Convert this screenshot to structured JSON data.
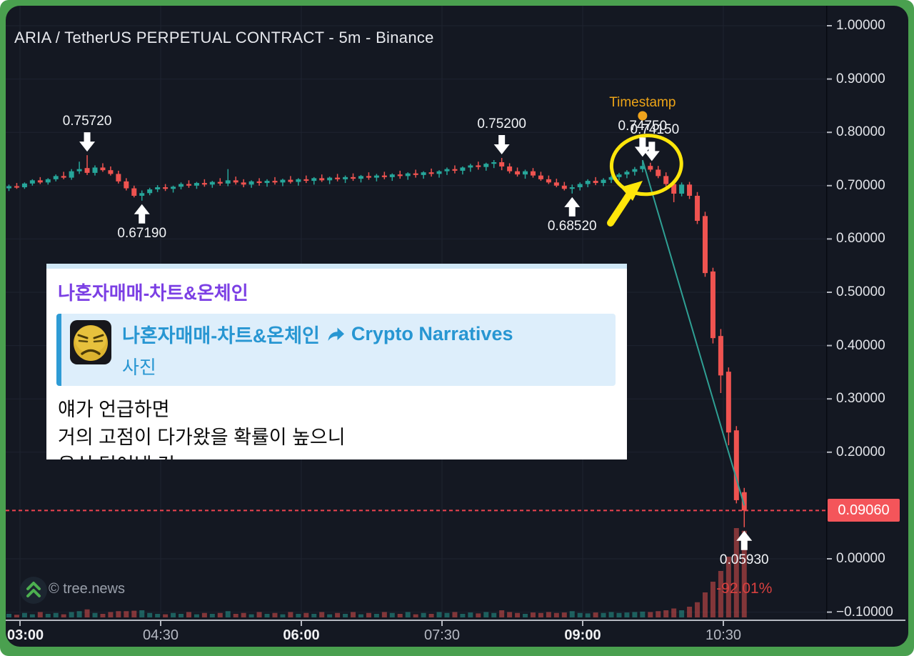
{
  "colors": {
    "up": "#26a69a",
    "down": "#ef5350",
    "grid": "#1e2330",
    "axis_line": "#b6b9c1",
    "price_axis_line": "#070a12",
    "dotted_line": "#ef4450",
    "tag_bg": "#f4555a",
    "trend_line": "#2fa094",
    "highlight": "#ffe60a",
    "timestamp_dot": "#f0a41d",
    "frame_green": "#4aa04f",
    "panel_bg": "#141822"
  },
  "chart_data": {
    "type": "candlestick",
    "title": "ARIA / TetherUS PERPETUAL CONTRACT - 5m - Binance",
    "interval": "5m",
    "y_ticks": [
      {
        "value": 1.0,
        "label": "1.00000"
      },
      {
        "value": 0.9,
        "label": "0.90000"
      },
      {
        "value": 0.8,
        "label": "0.80000"
      },
      {
        "value": 0.7,
        "label": "0.70000"
      },
      {
        "value": 0.6,
        "label": "0.60000"
      },
      {
        "value": 0.5,
        "label": "0.50000"
      },
      {
        "value": 0.4,
        "label": "0.40000"
      },
      {
        "value": 0.3,
        "label": "0.30000"
      },
      {
        "value": 0.2,
        "label": "0.20000"
      },
      {
        "value": 0.0,
        "label": "0.00000"
      },
      {
        "value": -0.1,
        "label": "−0.10000"
      }
    ],
    "x_ticks": [
      {
        "label": "03:00",
        "bold": true
      },
      {
        "label": "04:30",
        "bold": false
      },
      {
        "label": "06:00",
        "bold": true
      },
      {
        "label": "07:30",
        "bold": false
      },
      {
        "label": "09:00",
        "bold": true
      },
      {
        "label": "10:30",
        "bold": false
      }
    ],
    "candles": [
      [
        0.695,
        0.702,
        0.69,
        0.699
      ],
      [
        0.699,
        0.705,
        0.694,
        0.697
      ],
      [
        0.697,
        0.706,
        0.694,
        0.704
      ],
      [
        0.704,
        0.712,
        0.7,
        0.71
      ],
      [
        0.71,
        0.716,
        0.703,
        0.706
      ],
      [
        0.706,
        0.714,
        0.702,
        0.712
      ],
      [
        0.712,
        0.721,
        0.708,
        0.718
      ],
      [
        0.718,
        0.726,
        0.712,
        0.715
      ],
      [
        0.715,
        0.731,
        0.711,
        0.727
      ],
      [
        0.727,
        0.745,
        0.722,
        0.731
      ],
      [
        0.733,
        0.7572,
        0.72,
        0.724
      ],
      [
        0.724,
        0.738,
        0.719,
        0.734
      ],
      [
        0.734,
        0.742,
        0.726,
        0.729
      ],
      [
        0.729,
        0.736,
        0.719,
        0.722
      ],
      [
        0.722,
        0.728,
        0.704,
        0.708
      ],
      [
        0.708,
        0.714,
        0.691,
        0.695
      ],
      [
        0.695,
        0.7,
        0.678,
        0.681
      ],
      [
        0.681,
        0.691,
        0.6719,
        0.686
      ],
      [
        0.686,
        0.696,
        0.682,
        0.693
      ],
      [
        0.693,
        0.701,
        0.688,
        0.697
      ],
      [
        0.697,
        0.703,
        0.69,
        0.694
      ],
      [
        0.694,
        0.7,
        0.687,
        0.698
      ],
      [
        0.698,
        0.706,
        0.693,
        0.703
      ],
      [
        0.703,
        0.71,
        0.696,
        0.7
      ],
      [
        0.7,
        0.707,
        0.694,
        0.705
      ],
      [
        0.705,
        0.712,
        0.698,
        0.702
      ],
      [
        0.702,
        0.709,
        0.696,
        0.707
      ],
      [
        0.707,
        0.714,
        0.7,
        0.704
      ],
      [
        0.704,
        0.731,
        0.699,
        0.71
      ],
      [
        0.71,
        0.717,
        0.702,
        0.706
      ],
      [
        0.706,
        0.712,
        0.697,
        0.702
      ],
      [
        0.702,
        0.71,
        0.696,
        0.708
      ],
      [
        0.708,
        0.714,
        0.7,
        0.705
      ],
      [
        0.705,
        0.712,
        0.698,
        0.709
      ],
      [
        0.709,
        0.716,
        0.702,
        0.706
      ],
      [
        0.706,
        0.713,
        0.699,
        0.711
      ],
      [
        0.711,
        0.718,
        0.704,
        0.707
      ],
      [
        0.707,
        0.714,
        0.7,
        0.712
      ],
      [
        0.712,
        0.719,
        0.705,
        0.709
      ],
      [
        0.709,
        0.716,
        0.702,
        0.714
      ],
      [
        0.714,
        0.721,
        0.707,
        0.71
      ],
      [
        0.71,
        0.717,
        0.703,
        0.715
      ],
      [
        0.715,
        0.722,
        0.708,
        0.712
      ],
      [
        0.712,
        0.719,
        0.705,
        0.716
      ],
      [
        0.716,
        0.723,
        0.709,
        0.713
      ],
      [
        0.713,
        0.72,
        0.706,
        0.718
      ],
      [
        0.718,
        0.725,
        0.711,
        0.715
      ],
      [
        0.715,
        0.722,
        0.708,
        0.719
      ],
      [
        0.719,
        0.726,
        0.712,
        0.716
      ],
      [
        0.716,
        0.723,
        0.709,
        0.721
      ],
      [
        0.721,
        0.728,
        0.713,
        0.718
      ],
      [
        0.718,
        0.725,
        0.711,
        0.723
      ],
      [
        0.723,
        0.73,
        0.715,
        0.72
      ],
      [
        0.72,
        0.727,
        0.713,
        0.725
      ],
      [
        0.725,
        0.732,
        0.717,
        0.722
      ],
      [
        0.722,
        0.729,
        0.715,
        0.727
      ],
      [
        0.727,
        0.734,
        0.72,
        0.731
      ],
      [
        0.731,
        0.738,
        0.723,
        0.728
      ],
      [
        0.728,
        0.736,
        0.721,
        0.734
      ],
      [
        0.734,
        0.741,
        0.726,
        0.738
      ],
      [
        0.738,
        0.745,
        0.73,
        0.735
      ],
      [
        0.735,
        0.743,
        0.728,
        0.741
      ],
      [
        0.741,
        0.748,
        0.733,
        0.744
      ],
      [
        0.744,
        0.752,
        0.729,
        0.736
      ],
      [
        0.736,
        0.742,
        0.723,
        0.727
      ],
      [
        0.727,
        0.734,
        0.717,
        0.721
      ],
      [
        0.721,
        0.73,
        0.713,
        0.727
      ],
      [
        0.727,
        0.733,
        0.715,
        0.719
      ],
      [
        0.719,
        0.726,
        0.709,
        0.712
      ],
      [
        0.712,
        0.719,
        0.703,
        0.706
      ],
      [
        0.706,
        0.713,
        0.697,
        0.7
      ],
      [
        0.7,
        0.707,
        0.691,
        0.694
      ],
      [
        0.694,
        0.702,
        0.6852,
        0.697
      ],
      [
        0.697,
        0.706,
        0.691,
        0.703
      ],
      [
        0.703,
        0.712,
        0.697,
        0.709
      ],
      [
        0.709,
        0.716,
        0.701,
        0.705
      ],
      [
        0.705,
        0.714,
        0.699,
        0.711
      ],
      [
        0.711,
        0.719,
        0.705,
        0.716
      ],
      [
        0.716,
        0.724,
        0.71,
        0.721
      ],
      [
        0.721,
        0.729,
        0.714,
        0.726
      ],
      [
        0.726,
        0.735,
        0.719,
        0.731
      ],
      [
        0.731,
        0.7475,
        0.725,
        0.737
      ],
      [
        0.737,
        0.743,
        0.726,
        0.73
      ],
      [
        0.73,
        0.737,
        0.714,
        0.718
      ],
      [
        0.718,
        0.725,
        0.699,
        0.703
      ],
      [
        0.703,
        0.711,
        0.669,
        0.685
      ],
      [
        0.685,
        0.706,
        0.68,
        0.702
      ],
      [
        0.702,
        0.707,
        0.675,
        0.681
      ],
      [
        0.681,
        0.688,
        0.628,
        0.634
      ],
      [
        0.643,
        0.651,
        0.529,
        0.536
      ],
      [
        0.539,
        0.546,
        0.404,
        0.414
      ],
      [
        0.418,
        0.431,
        0.311,
        0.344
      ],
      [
        0.351,
        0.359,
        0.213,
        0.237
      ],
      [
        0.241,
        0.249,
        0.104,
        0.11
      ],
      [
        0.125,
        0.133,
        0.0593,
        0.0906
      ]
    ],
    "volume": [
      0.04,
      0.03,
      0.05,
      0.035,
      0.06,
      0.04,
      0.05,
      0.035,
      0.06,
      0.07,
      0.09,
      0.05,
      0.04,
      0.06,
      0.07,
      0.07,
      0.075,
      0.08,
      0.05,
      0.04,
      0.035,
      0.05,
      0.04,
      0.06,
      0.035,
      0.05,
      0.04,
      0.05,
      0.07,
      0.04,
      0.05,
      0.035,
      0.06,
      0.04,
      0.05,
      0.035,
      0.06,
      0.04,
      0.05,
      0.04,
      0.06,
      0.035,
      0.05,
      0.04,
      0.06,
      0.035,
      0.05,
      0.04,
      0.06,
      0.05,
      0.04,
      0.06,
      0.035,
      0.05,
      0.04,
      0.06,
      0.05,
      0.06,
      0.04,
      0.055,
      0.045,
      0.06,
      0.05,
      0.08,
      0.06,
      0.05,
      0.04,
      0.055,
      0.05,
      0.06,
      0.05,
      0.055,
      0.07,
      0.05,
      0.045,
      0.055,
      0.05,
      0.06,
      0.05,
      0.055,
      0.06,
      0.065,
      0.06,
      0.07,
      0.08,
      0.1,
      0.08,
      0.12,
      0.17,
      0.28,
      0.4,
      0.52,
      0.68,
      1.0,
      0.97
    ],
    "markers": [
      {
        "candle": 10,
        "dir": "down",
        "label": "0.75720"
      },
      {
        "candle": 17,
        "dir": "up",
        "label": "0.67190"
      },
      {
        "candle": 63,
        "dir": "down",
        "label": "0.75200"
      },
      {
        "candle": 72,
        "dir": "up",
        "label": "0.68520"
      },
      {
        "candle": 81,
        "dir": "down",
        "label": "0.74750",
        "label2": "0.74150"
      },
      {
        "candle": 94,
        "dir": "up",
        "label": "0.05930"
      }
    ],
    "timestamp_marker": {
      "candle": 81,
      "label": "Timestamp"
    },
    "crash_pct": {
      "candle": 94,
      "label": "-92.01%"
    },
    "price_line": {
      "value": 0.0906,
      "label": "0.09060"
    },
    "trend_line": {
      "from_candle": 81,
      "from_price": 0.748,
      "to_candle": 94,
      "to_price": 0.1
    },
    "highlight_ellipse": {
      "price": 0.739,
      "candle": 81.5
    }
  },
  "telegram": {
    "channel": "나혼자매매-차트&온체인",
    "quote_title": "나혼자매매-차트&온체인",
    "forward_icon": "forward-arrow",
    "quote_target": "Crypto Narratives",
    "quote_media": "사진",
    "lines": [
      "얘가 언급하면",
      "거의 고점이 다가왔을 확률이 높으니",
      "욕심 덜어낼 것"
    ]
  },
  "footer": {
    "copyright": "© tree.news"
  }
}
